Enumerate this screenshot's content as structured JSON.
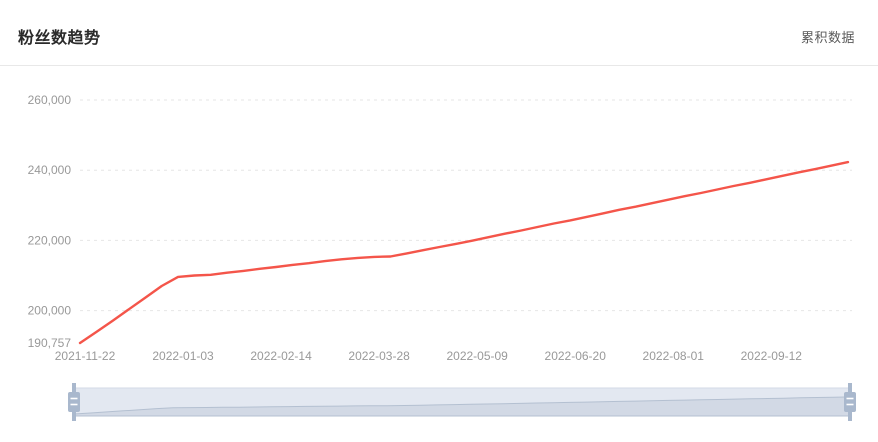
{
  "header": {
    "title": "粉丝数趋势",
    "mode_label": "累积数据"
  },
  "chart_data": {
    "type": "line",
    "title": "粉丝数趋势",
    "legend": [
      "累积数据"
    ],
    "line_color": "#F4554A",
    "grid_color": "#E6E6E6",
    "axis_label_color": "#999999",
    "ylim": [
      190757,
      260000
    ],
    "y_ticks": [
      {
        "value": 190757,
        "label": "190,757",
        "grid": false
      },
      {
        "value": 200000,
        "label": "200,000",
        "grid": true
      },
      {
        "value": 220000,
        "label": "220,000",
        "grid": true
      },
      {
        "value": 240000,
        "label": "240,000",
        "grid": true
      },
      {
        "value": 260000,
        "label": "260,000",
        "grid": true
      }
    ],
    "x_tick_every": 6,
    "x_tick_labels": [
      "2021-11-22",
      "2022-01-03",
      "2022-02-14",
      "2022-03-28",
      "2022-05-09",
      "2022-06-20",
      "2022-08-01",
      "2022-09-12"
    ],
    "x": [
      "2021-11-22",
      "2021-11-29",
      "2021-12-06",
      "2021-12-13",
      "2021-12-20",
      "2021-12-27",
      "2022-01-03",
      "2022-01-10",
      "2022-01-17",
      "2022-01-24",
      "2022-01-31",
      "2022-02-07",
      "2022-02-14",
      "2022-02-21",
      "2022-02-28",
      "2022-03-07",
      "2022-03-14",
      "2022-03-21",
      "2022-03-28",
      "2022-04-04",
      "2022-04-11",
      "2022-04-18",
      "2022-04-25",
      "2022-05-02",
      "2022-05-09",
      "2022-05-16",
      "2022-05-23",
      "2022-05-30",
      "2022-06-06",
      "2022-06-13",
      "2022-06-20",
      "2022-06-27",
      "2022-07-04",
      "2022-07-11",
      "2022-07-18",
      "2022-07-25",
      "2022-08-01",
      "2022-08-08",
      "2022-08-15",
      "2022-08-22",
      "2022-08-29",
      "2022-09-05",
      "2022-09-12",
      "2022-09-19",
      "2022-09-26",
      "2022-10-03",
      "2022-10-10",
      "2022-10-17"
    ],
    "values": [
      190757,
      193900,
      197100,
      200400,
      203700,
      207000,
      209600,
      210000,
      210200,
      210800,
      211300,
      211900,
      212400,
      213000,
      213500,
      214100,
      214600,
      215000,
      215300,
      215400,
      216300,
      217200,
      218100,
      219000,
      219900,
      220900,
      221900,
      222800,
      223800,
      224800,
      225700,
      226700,
      227700,
      228700,
      229600,
      230600,
      231600,
      232600,
      233500,
      234500,
      235500,
      236400,
      237400,
      238400,
      239400,
      240300,
      241300,
      242300
    ]
  },
  "datazoom": {
    "zoom_range_percent": [
      0,
      100
    ],
    "track_color": "#E3E8F1",
    "shadow_fill": "#D2D9E5",
    "shadow_line": "#B4C0D1",
    "handle_color": "#A9B8CD"
  }
}
